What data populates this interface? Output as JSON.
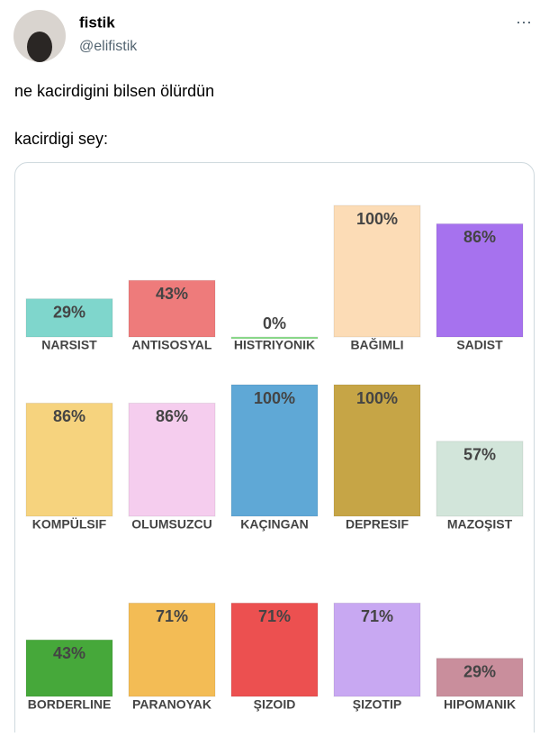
{
  "tweet": {
    "name": "fistik",
    "handle": "@elifistik",
    "menu": "⋯",
    "text": "ne kacirdigini bilsen ölürdün",
    "text2": "kacirdigi sey:"
  },
  "chart_data": [
    {
      "type": "bar",
      "categories": [
        "NARSIST",
        "ANTISOSYAL",
        "HISTRIYONIK",
        "BAĞIMLI",
        "SADIST"
      ],
      "values": [
        29,
        43,
        0,
        100,
        86
      ],
      "value_labels": [
        "29%",
        "43%",
        "0%",
        "100%",
        "86%"
      ],
      "colors": [
        "#7fd6cc",
        "#ee7b7b",
        "#8fe08f",
        "#fcdcb6",
        "#a672ee"
      ]
    },
    {
      "type": "bar",
      "categories": [
        "KOMPÜLSIF",
        "OLUMSUZCU",
        "KAÇINGAN",
        "DEPRESIF",
        "MAZOŞIST"
      ],
      "values": [
        86,
        86,
        100,
        100,
        57
      ],
      "value_labels": [
        "86%",
        "86%",
        "100%",
        "100%",
        "57%"
      ],
      "colors": [
        "#f6d37e",
        "#f5cdee",
        "#5fa8d6",
        "#c6a546",
        "#d2e5da"
      ]
    },
    {
      "type": "bar",
      "categories": [
        "BORDERLINE",
        "PARANOYAK",
        "ŞIZOID",
        "ŞIZOTIP",
        "HIPOMANIK"
      ],
      "values": [
        43,
        71,
        71,
        71,
        29
      ],
      "value_labels": [
        "43%",
        "71%",
        "71%",
        "71%",
        "29%"
      ],
      "colors": [
        "#46a83a",
        "#f3bc55",
        "#ec5050",
        "#c8a8f2",
        "#c98e9c"
      ]
    }
  ]
}
